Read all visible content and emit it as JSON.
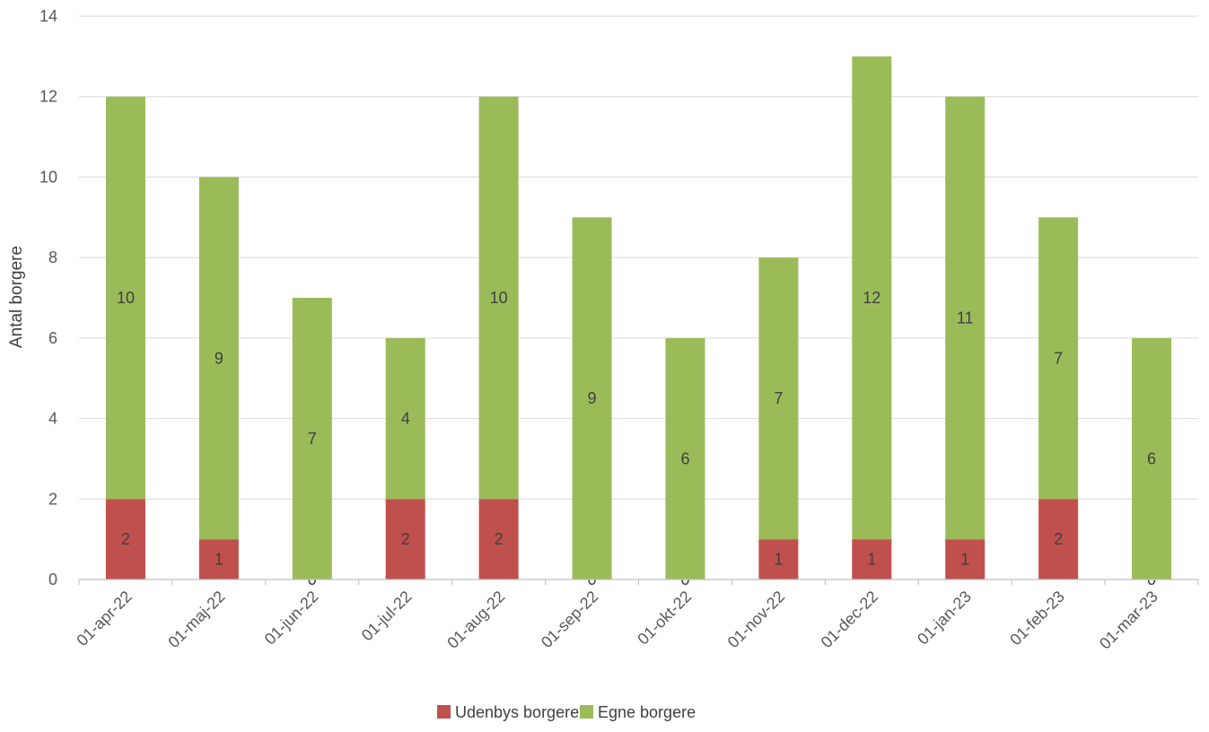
{
  "chart_data": {
    "type": "bar",
    "stacked": true,
    "categories": [
      "01-apr-22",
      "01-maj-22",
      "01-jun-22",
      "01-jul-22",
      "01-aug-22",
      "01-sep-22",
      "01-okt-22",
      "01-nov-22",
      "01-dec-22",
      "01-jan-23",
      "01-feb-23",
      "01-mar-23"
    ],
    "series": [
      {
        "name": "Udenbys borgere",
        "color": "#c0504d",
        "values": [
          2,
          1,
          0,
          2,
          2,
          0,
          0,
          1,
          1,
          1,
          2,
          0
        ]
      },
      {
        "name": "Egne borgere",
        "color": "#9bbb59",
        "values": [
          10,
          9,
          7,
          4,
          10,
          9,
          6,
          7,
          12,
          11,
          7,
          6
        ]
      }
    ],
    "title": "",
    "xlabel": "",
    "ylabel": "Antal borgere",
    "ylim": [
      0,
      14
    ],
    "yticks": [
      "0",
      "2",
      "4",
      "6",
      "8",
      "10",
      "12",
      "14"
    ],
    "grid": true,
    "legend_position": "bottom"
  }
}
